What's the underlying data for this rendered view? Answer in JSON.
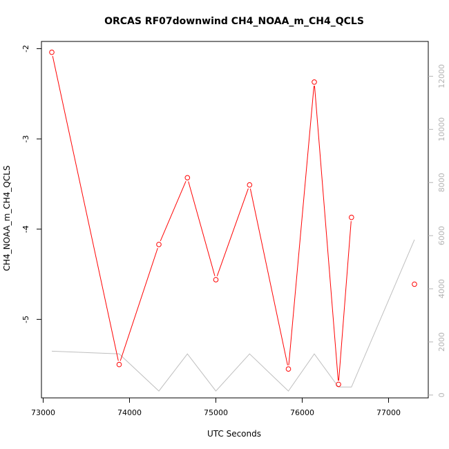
{
  "chart_data": {
    "type": "line",
    "title": "ORCAS RF07downwind CH4_NOAA_m_CH4_QCLS",
    "xlabel": "UTC Seconds",
    "ylabel": "CH4_NOAA_m_CH4_QCLS",
    "xlim": [
      72980,
      77460
    ],
    "ylim": [
      -5.87,
      -1.92
    ],
    "y2lim": [
      -107,
      13310
    ],
    "x_ticks": [
      73000,
      74000,
      75000,
      76000,
      77000
    ],
    "y_ticks": [
      -5,
      -4,
      -3,
      -2
    ],
    "y2_ticks": [
      0,
      2000,
      4000,
      6000,
      8000,
      10000,
      12000
    ],
    "grid": false,
    "series": [
      {
        "color": "#ff0000",
        "marker": "open-circle",
        "axis": "left",
        "x": [
          73100,
          73880,
          74340,
          74670,
          75000,
          75390,
          75840,
          76140,
          76420,
          76570,
          77300
        ],
        "y": [
          -2.04,
          -5.5,
          -4.17,
          -3.43,
          -4.56,
          -3.51,
          -5.55,
          -2.37,
          -5.72,
          -3.87,
          -4.61
        ],
        "connected": [
          true,
          true,
          true,
          true,
          true,
          true,
          true,
          true,
          true,
          false
        ]
      },
      {
        "color": "#bebebe",
        "marker": "none",
        "axis": "right",
        "x": [
          73100,
          73880,
          74340,
          74670,
          75000,
          75390,
          75840,
          76140,
          76420,
          76570,
          77300
        ],
        "y": [
          1650,
          1550,
          150,
          1550,
          150,
          1550,
          150,
          1550,
          300,
          300,
          5850
        ]
      }
    ]
  }
}
